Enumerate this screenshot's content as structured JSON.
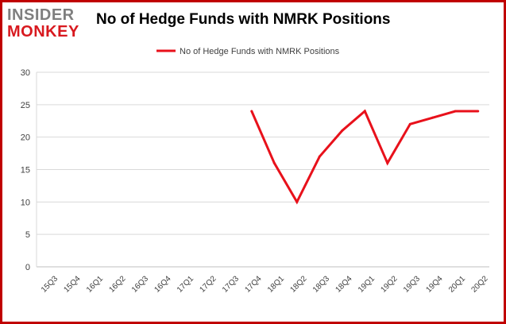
{
  "logo": {
    "line1": "INSIDER",
    "line2": "MONKEY"
  },
  "colors": {
    "series": "#e8111b",
    "border": "#c00000",
    "grid": "#d9d9d9"
  },
  "chart_data": {
    "type": "line",
    "title": "No of Hedge Funds with NMRK Positions",
    "xlabel": "",
    "ylabel": "",
    "ylim": [
      0,
      30
    ],
    "yticks": [
      0,
      5,
      10,
      15,
      20,
      25,
      30
    ],
    "grid": true,
    "legend_position": "top",
    "categories": [
      "15Q3",
      "15Q4",
      "16Q1",
      "16Q2",
      "16Q3",
      "16Q4",
      "17Q1",
      "17Q2",
      "17Q3",
      "17Q4",
      "18Q1",
      "18Q2",
      "18Q3",
      "18Q4",
      "19Q1",
      "19Q2",
      "19Q3",
      "19Q4",
      "20Q1",
      "20Q2"
    ],
    "series": [
      {
        "name": "No of Hedge Funds with NMRK Positions",
        "values": [
          null,
          null,
          null,
          null,
          null,
          null,
          null,
          null,
          null,
          24,
          16,
          10,
          17,
          21,
          24,
          16,
          22,
          23,
          24,
          24
        ]
      }
    ]
  }
}
